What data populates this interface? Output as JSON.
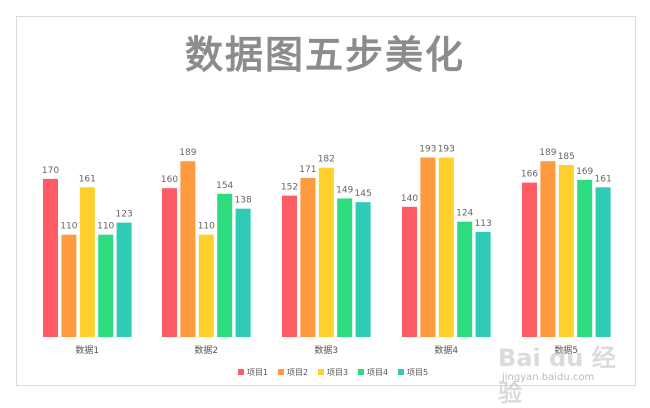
{
  "chart_data": {
    "type": "bar",
    "title": "数据图五步美化",
    "categories": [
      "数据1",
      "数据2",
      "数据3",
      "数据4",
      "数据5"
    ],
    "series": [
      {
        "name": "项目1",
        "color": "#ff5b64",
        "values": [
          170,
          160,
          152,
          140,
          166
        ]
      },
      {
        "name": "项目2",
        "color": "#ff9a3e",
        "values": [
          110,
          189,
          171,
          193,
          189
        ]
      },
      {
        "name": "项目3",
        "color": "#ffd02c",
        "values": [
          161,
          110,
          182,
          193,
          185
        ]
      },
      {
        "name": "项目4",
        "color": "#2ddc7e",
        "values": [
          110,
          154,
          149,
          124,
          169
        ]
      },
      {
        "name": "项目5",
        "color": "#2fcbb7",
        "values": [
          123,
          138,
          145,
          113,
          161
        ]
      }
    ],
    "ylim": [
      0,
      200
    ],
    "grid": false,
    "legend": "bottom-center",
    "data_labels": true
  },
  "watermark": {
    "logo": "Bai du 经验",
    "url": "jingyan.baidu.com"
  }
}
